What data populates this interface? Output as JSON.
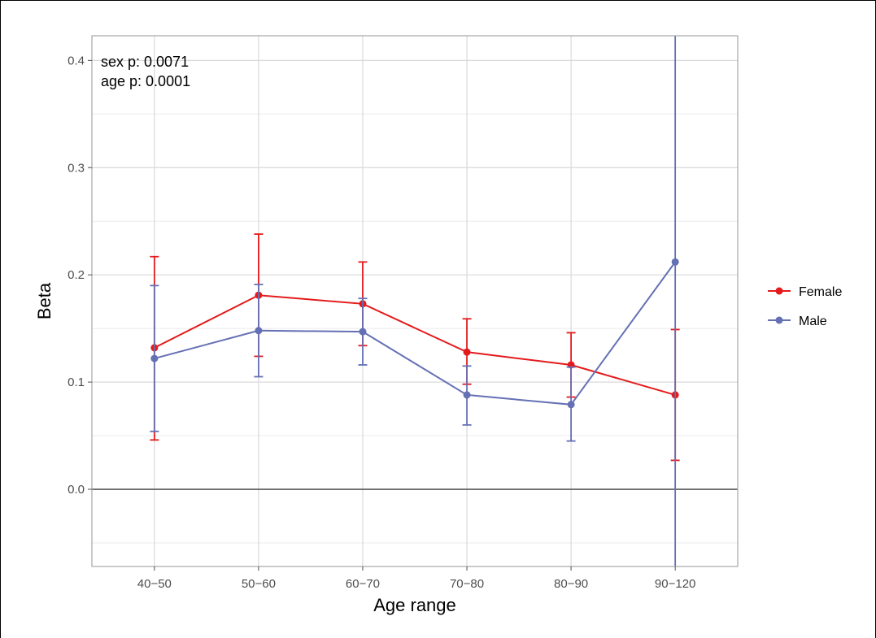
{
  "chart_data": {
    "type": "line",
    "categories": [
      "40−50",
      "50−60",
      "60−70",
      "70−80",
      "80−90",
      "90−120"
    ],
    "xlabel": "Age range",
    "ylabel": "Beta",
    "ylim": [
      -0.072,
      0.423
    ],
    "yticks": [
      0.0,
      0.1,
      0.2,
      0.3,
      0.4
    ],
    "ytick_labels": [
      "0.0",
      "0.1",
      "0.2",
      "0.3",
      "0.4"
    ],
    "grid": true,
    "hline": 0,
    "legend_position": "right",
    "annotations": [
      "sex p: 0.0071",
      "age p: 0.0001"
    ],
    "series": [
      {
        "name": "Female",
        "color": "#e41a1c",
        "values": [
          0.132,
          0.181,
          0.173,
          0.128,
          0.116,
          0.088
        ],
        "lower": [
          0.046,
          0.124,
          0.134,
          0.098,
          0.086,
          0.027
        ],
        "upper": [
          0.217,
          0.238,
          0.212,
          0.159,
          0.146,
          0.149
        ]
      },
      {
        "name": "Male",
        "color": "#6470b4",
        "values": [
          0.122,
          0.148,
          0.147,
          0.088,
          0.079,
          0.212
        ],
        "lower": [
          0.054,
          0.105,
          0.116,
          0.06,
          0.045,
          -0.072
        ],
        "upper": [
          0.19,
          0.191,
          0.178,
          0.115,
          0.114,
          0.423
        ]
      }
    ]
  }
}
